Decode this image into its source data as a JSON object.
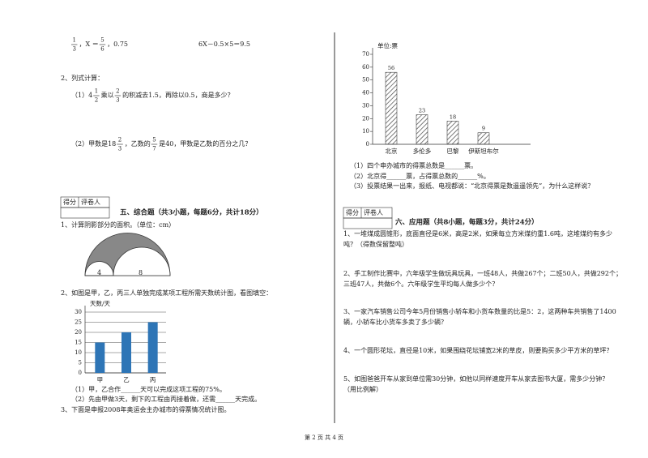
{
  "page": {
    "left": {
      "eq1": [
        {
          "num": "1",
          "den": "3"
        },
        "，X ＝ ",
        {
          "num": "5",
          "den": "6"
        },
        "，0.75"
      ],
      "eq2": "6X－0.5×5＝9.5",
      "q2_title": "2、列式计算：",
      "q2_1": [
        "（1）4",
        {
          "num": "1",
          "den": "2"
        },
        "乘以",
        {
          "num": "2",
          "den": "3"
        },
        "的积减去1.5，再除以0.5，商是多少？"
      ],
      "q2_2": [
        "（2）甲数是18",
        {
          "num": "2",
          "den": "3"
        },
        "，乙数的",
        {
          "num": "5",
          "den": "7"
        },
        "是40，甲数是乙数的百分之几？"
      ],
      "score_box": [
        "得分",
        "评卷人"
      ],
      "section5": "五、综合题（共3小题，每题6分，共计18分）",
      "s5_1": "1、计算阴影部分的面积。（单位：cm）",
      "fig_labels": [
        "4",
        "8"
      ],
      "s5_2": "2、如图是甲，乙，丙三人单独完成某项工程所需天数统计图，看图填空：",
      "chart_data": {
        "type": "bar",
        "y_label": "天数/天",
        "categories": [
          "甲",
          "乙",
          "丙"
        ],
        "values": [
          15,
          20,
          25
        ],
        "color": "#2e75b6",
        "ylim": [
          0,
          30
        ],
        "yticks": [
          0,
          5,
          10,
          15,
          20,
          25,
          30
        ],
        "grid": true
      },
      "s5_2_a": "（1）甲，乙合作______天可以完成这项工程的75%。",
      "s5_2_b": "（2）先由甲做3天，剩下的工程由丙接着做，还需______天完成。",
      "s5_3": "3、下面是申报2008年奥运会主办城市的得票情况统计图。"
    },
    "right": {
      "chart_data": {
        "type": "bar",
        "y_label": "单位:票",
        "categories": [
          "北京",
          "多伦多",
          "巴黎",
          "伊斯坦布尔"
        ],
        "values": [
          56,
          23,
          18,
          9
        ],
        "color": "#444444",
        "hatch": true,
        "show_values": true,
        "ylim": [
          0,
          70
        ],
        "yticks": [
          0,
          10,
          20,
          30,
          40,
          50,
          60,
          70
        ],
        "grid": false
      },
      "r1": "（1）四个申办城市的得票总数是______票。",
      "r2": "（2）北京得______票，占得票总数的______%。",
      "r3": "（3）投票结果一出来，报纸、电视都说：“北京得票是数遥遥领先”，为什么这样说？",
      "score_box": [
        "得分",
        "评卷人"
      ],
      "section6": "六、应用题（共8小题，每题3分，共计24分）",
      "q1": [
        "1、一堆煤成圆锥形，底面直径是6米，高是2米，如果每立方米煤约重1.6吨，这堆煤约有多少",
        "吨？（得数保留整吨）"
      ],
      "q2": [
        "2、手工制作比赛中，六年级学生做玩具玩具，一班48人，共做267个；二班50人，共做292个；",
        "三班47人，共做6个。六年级学生平均每人做多少个？"
      ],
      "q3": [
        "3、一家汽车销售公司今年5月份销售小轿车和小货车数量的比是5：2，这两种车共销售了1400",
        "辆，小轿车比小货车多卖了多少辆？"
      ],
      "q4": [
        "4、一个圆形花坛，直径是10米，如果围绕花坛铺宽2米的草皮，则要购买多少平方米的草坪？"
      ],
      "q5": [
        "5、如图爸爸开车从家到单位需30分钟，如他以同样速度开车从家去图书大厦，需多少分钟？",
        "（用比例解）"
      ]
    },
    "footer": "第 2 页 共 4 页"
  }
}
